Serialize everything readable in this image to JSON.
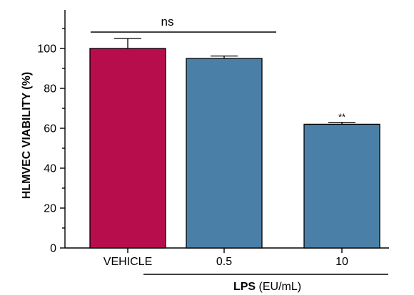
{
  "chart_data": {
    "type": "bar",
    "categories": [
      "VEHICLE",
      "0.5",
      "10"
    ],
    "values": [
      100,
      95,
      62
    ],
    "errors": [
      5,
      1.2,
      1
    ],
    "colors": [
      "#b80d4d",
      "#4a80a8",
      "#4a80a8"
    ],
    "ylabel": "HLMVEC VIABILITY (%)",
    "ylim": [
      0,
      120
    ],
    "yticks": [
      0,
      20,
      40,
      60,
      80,
      100
    ],
    "grid": false,
    "group_label": {
      "bold": "LPS",
      "normal": " (EU/mL)",
      "categories": [
        "0.5",
        "10"
      ]
    },
    "annotations": [
      {
        "text": "ns",
        "from_category": "VEHICLE",
        "to_category": "0.5"
      },
      {
        "text": "**",
        "category": "10"
      }
    ]
  }
}
